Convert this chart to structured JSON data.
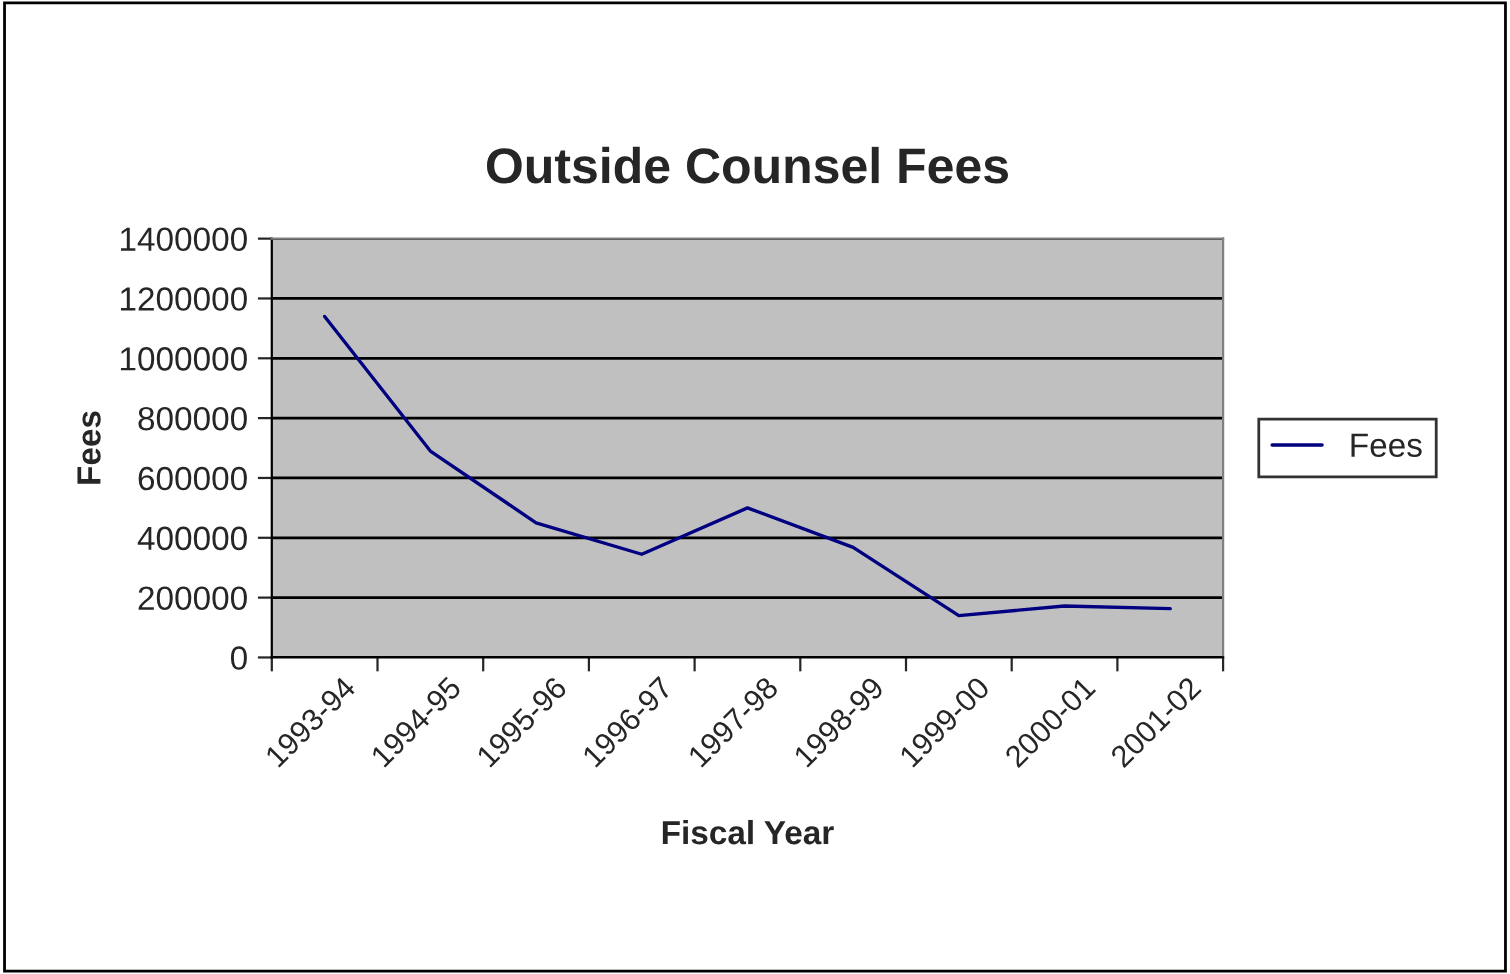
{
  "chart_data": {
    "type": "line",
    "title": "Outside Counsel Fees",
    "xlabel": "Fiscal Year",
    "ylabel": "Fees",
    "categories": [
      "1993-94",
      "1994-95",
      "1995-96",
      "1996-97",
      "1997-98",
      "1998-99",
      "1999-00",
      "2000-01",
      "2001-02"
    ],
    "series": [
      {
        "name": "Fees",
        "color": "#000080",
        "values": [
          1140000,
          690000,
          450000,
          345000,
          500000,
          368000,
          140000,
          172000,
          163000
        ]
      }
    ],
    "ylim": [
      0,
      1400000
    ],
    "yticks": [
      0,
      200000,
      400000,
      600000,
      800000,
      1000000,
      1200000,
      1400000
    ],
    "grid": "y",
    "legend": "right",
    "marker": "none",
    "line_style": "solid"
  }
}
